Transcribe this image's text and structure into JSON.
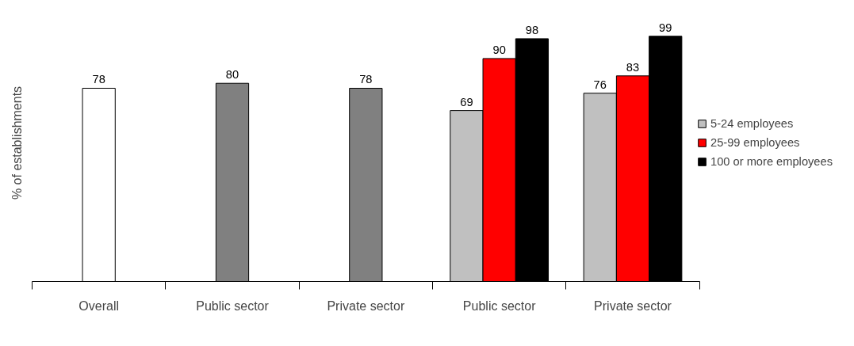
{
  "chart_data": {
    "type": "bar",
    "ylabel": "% of establishments",
    "categories": [
      "Overall",
      "Public sector",
      "Private sector",
      "Public sector",
      "Private sector"
    ],
    "series": [
      {
        "color": "#ffffff",
        "values": [
          78,
          null,
          null,
          null,
          null
        ]
      },
      {
        "color": "#808080",
        "values": [
          null,
          80,
          78,
          null,
          null
        ]
      },
      {
        "name": "5-24 employees",
        "color": "#c0c0c0",
        "values": [
          null,
          null,
          null,
          69,
          76
        ]
      },
      {
        "name": "25-99 employees",
        "color": "#ff0000",
        "values": [
          null,
          null,
          null,
          90,
          83
        ]
      },
      {
        "name": "100 or more employees",
        "color": "#000000",
        "values": [
          null,
          null,
          null,
          98,
          99
        ]
      }
    ],
    "data_labels": true,
    "legend": "right"
  }
}
